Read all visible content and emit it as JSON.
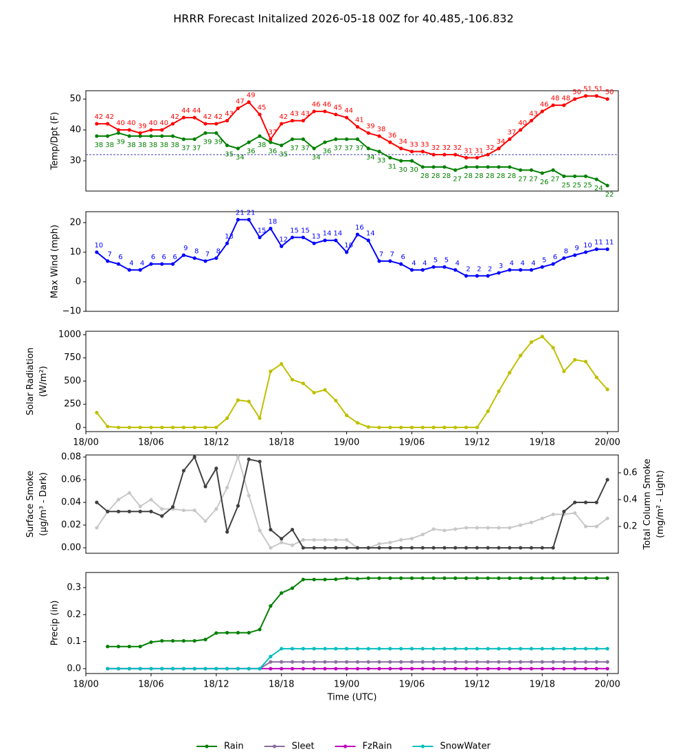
{
  "title": "HRRR Forecast Initalized 2026-05-18 00Z for 40.485,-106.832",
  "chart_data": [
    {
      "type": "line",
      "ylabel": [
        "Temp/Dpt (F)"
      ],
      "x": [
        1,
        2,
        3,
        4,
        5,
        6,
        7,
        8,
        9,
        10,
        11,
        12,
        13,
        14,
        15,
        16,
        17,
        18,
        19,
        20,
        21,
        22,
        23,
        24,
        25,
        26,
        27,
        28,
        29,
        30,
        31,
        32,
        33,
        34,
        35,
        36,
        37,
        38,
        39,
        40,
        41,
        42,
        43,
        44,
        45,
        46,
        47,
        48
      ],
      "xlim": [
        0,
        49
      ],
      "ylim": [
        20.2,
        52.7
      ],
      "yticks": [
        30,
        40,
        50
      ],
      "hline": {
        "value": 32,
        "color": "#00008b"
      },
      "series": [
        {
          "color": "#ff0000",
          "labels": "above",
          "values": [
            42,
            42,
            40,
            40,
            39,
            40,
            40,
            42,
            44,
            44,
            42,
            42,
            43,
            47,
            49,
            45,
            37,
            42,
            43,
            43,
            46,
            46,
            45,
            44,
            41,
            39,
            38,
            36,
            34,
            33,
            33,
            32,
            32,
            32,
            31,
            31,
            32,
            34,
            37,
            40,
            43,
            46,
            48,
            48,
            50,
            51,
            51,
            50
          ]
        },
        {
          "color": "#008000",
          "labels": "below",
          "values": [
            38,
            38,
            39,
            38,
            38,
            38,
            38,
            38,
            37,
            37,
            39,
            39,
            35,
            34,
            36,
            38,
            36,
            35,
            37,
            37,
            34,
            36,
            37,
            37,
            37,
            34,
            33,
            31,
            30,
            30,
            28,
            28,
            28,
            27,
            28,
            28,
            28,
            28,
            28,
            27,
            27,
            26,
            27,
            25,
            25,
            25,
            24,
            22
          ]
        }
      ]
    },
    {
      "type": "line",
      "ylabel": [
        "Max Wind (mph)"
      ],
      "x": [
        1,
        2,
        3,
        4,
        5,
        6,
        7,
        8,
        9,
        10,
        11,
        12,
        13,
        14,
        15,
        16,
        17,
        18,
        19,
        20,
        21,
        22,
        23,
        24,
        25,
        26,
        27,
        28,
        29,
        30,
        31,
        32,
        33,
        34,
        35,
        36,
        37,
        38,
        39,
        40,
        41,
        42,
        43,
        44,
        45,
        46,
        47,
        48
      ],
      "xlim": [
        0,
        49
      ],
      "ylim": [
        -10,
        23.7
      ],
      "yticks": [
        {
          "value": -10,
          "label": "−10"
        },
        0,
        10,
        20
      ],
      "series": [
        {
          "color": "#0000ff",
          "labels": "above",
          "values": [
            10,
            7,
            6,
            4,
            4,
            6,
            6,
            6,
            9,
            8,
            7,
            8,
            13,
            21,
            21,
            15,
            18,
            12,
            15,
            15,
            13,
            14,
            14,
            10,
            16,
            14,
            7,
            7,
            6,
            4,
            4,
            5,
            5,
            4,
            2,
            2,
            2,
            3,
            4,
            4,
            4,
            5,
            6,
            8,
            9,
            10,
            11,
            11
          ]
        }
      ]
    },
    {
      "type": "line",
      "ylabel": [
        "Solar Radiation",
        "(W/m²)"
      ],
      "x": [
        1,
        2,
        3,
        4,
        5,
        6,
        7,
        8,
        9,
        10,
        11,
        12,
        13,
        14,
        15,
        16,
        17,
        18,
        19,
        20,
        21,
        22,
        23,
        24,
        25,
        26,
        27,
        28,
        29,
        30,
        31,
        32,
        33,
        34,
        35,
        36,
        37,
        38,
        39,
        40,
        41,
        42,
        43,
        44,
        45,
        46,
        47,
        48
      ],
      "xlim": [
        0,
        49
      ],
      "ylim": [
        -45,
        1037
      ],
      "yticks": [
        0,
        250,
        500,
        750,
        1000
      ],
      "xticks": [
        {
          "value": 0,
          "label": "18/00"
        },
        {
          "value": 6,
          "label": "18/06"
        },
        {
          "value": 12,
          "label": "18/12"
        },
        {
          "value": 18,
          "label": "18/18"
        },
        {
          "value": 24,
          "label": "19/00"
        },
        {
          "value": 30,
          "label": "19/06"
        },
        {
          "value": 36,
          "label": "19/12"
        },
        {
          "value": 42,
          "label": "19/18"
        },
        {
          "value": 48,
          "label": "20/00"
        }
      ],
      "series": [
        {
          "color": "#bfbf00",
          "values": [
            160,
            10,
            0,
            0,
            0,
            0,
            0,
            0,
            0,
            0,
            0,
            0,
            100,
            295,
            280,
            100,
            605,
            685,
            515,
            475,
            375,
            405,
            290,
            130,
            50,
            5,
            0,
            0,
            0,
            0,
            0,
            0,
            0,
            0,
            0,
            0,
            175,
            390,
            590,
            775,
            920,
            980,
            860,
            605,
            730,
            710,
            540,
            410
          ]
        }
      ]
    },
    {
      "type": "line",
      "ylabel": [
        "Surface Smoke",
        "(μg/m³ - Dark)"
      ],
      "y2label": [
        "Total Column Smoke",
        "(mg/m² - Light)"
      ],
      "x": [
        1,
        2,
        3,
        4,
        5,
        6,
        7,
        8,
        9,
        10,
        11,
        12,
        13,
        14,
        15,
        16,
        17,
        18,
        19,
        20,
        21,
        22,
        23,
        24,
        25,
        26,
        27,
        28,
        29,
        30,
        31,
        32,
        33,
        34,
        35,
        36,
        37,
        38,
        39,
        40,
        41,
        42,
        43,
        44,
        45,
        46,
        47,
        48
      ],
      "xlim": [
        0,
        49
      ],
      "ylim": [
        -0.0048,
        0.0818
      ],
      "y2lim": [
        0,
        0.733
      ],
      "yticks": [
        {
          "value": 0,
          "label": "0.00"
        },
        {
          "value": 0.02,
          "label": "0.02"
        },
        {
          "value": 0.04,
          "label": "0.04"
        },
        {
          "value": 0.06,
          "label": "0.06"
        },
        {
          "value": 0.08,
          "label": "0.08"
        }
      ],
      "y2ticks": [
        0.2,
        0.4,
        0.6
      ],
      "series": [
        {
          "color": "#c8c8c8",
          "axis": "y2",
          "values": [
            0.19,
            0.31,
            0.4,
            0.45,
            0.35,
            0.4,
            0.33,
            0.33,
            0.32,
            0.32,
            0.24,
            0.33,
            0.49,
            0.72,
            0.43,
            0.17,
            0.04,
            0.08,
            0.06,
            0.1,
            0.1,
            0.1,
            0.1,
            0.1,
            0.04,
            0.04,
            0.07,
            0.08,
            0.1,
            0.11,
            0.14,
            0.18,
            0.17,
            0.18,
            0.19,
            0.19,
            0.19,
            0.19,
            0.19,
            0.21,
            0.23,
            0.26,
            0.29,
            0.29,
            0.3,
            0.2,
            0.2,
            0.26
          ]
        },
        {
          "color": "#404040",
          "values": [
            0.04,
            0.032,
            0.032,
            0.032,
            0.032,
            0.032,
            0.028,
            0.036,
            0.068,
            0.08,
            0.054,
            0.07,
            0.014,
            0.037,
            0.078,
            0.076,
            0.016,
            0.008,
            0.016,
            0,
            0,
            0,
            0,
            0,
            0,
            0,
            0,
            0,
            0,
            0,
            0,
            0,
            0,
            0,
            0,
            0,
            0,
            0,
            0,
            0,
            0,
            0,
            0,
            0.032,
            0.04,
            0.04,
            0.04,
            0.06
          ]
        }
      ]
    },
    {
      "type": "line",
      "ylabel": [
        "Precip (in)"
      ],
      "xlabel": "Time (UTC)",
      "legend": "lower center",
      "x": [
        1,
        2,
        3,
        4,
        5,
        6,
        7,
        8,
        9,
        10,
        11,
        12,
        13,
        14,
        15,
        16,
        17,
        18,
        19,
        20,
        21,
        22,
        23,
        24,
        25,
        26,
        27,
        28,
        29,
        30,
        31,
        32,
        33,
        34,
        35,
        36,
        37,
        38,
        39,
        40,
        41,
        42,
        43,
        44,
        45,
        46,
        47,
        48
      ],
      "xlim": [
        0,
        49
      ],
      "ylim": [
        -0.018,
        0.356
      ],
      "yticks": [
        {
          "value": 0,
          "label": "0.0"
        },
        0.1,
        0.2,
        0.3
      ],
      "xticks": [
        {
          "value": 0,
          "label": "18/00"
        },
        {
          "value": 6,
          "label": "18/06"
        },
        {
          "value": 12,
          "label": "18/12"
        },
        {
          "value": 18,
          "label": "18/18"
        },
        {
          "value": 24,
          "label": "19/00"
        },
        {
          "value": 30,
          "label": "19/06"
        },
        {
          "value": 36,
          "label": "19/12"
        },
        {
          "value": 42,
          "label": "19/18"
        },
        {
          "value": 48,
          "label": "20/00"
        }
      ],
      "series": [
        {
          "name": "Rain",
          "color": "#008000",
          "values": [
            null,
            0.082,
            0.082,
            0.082,
            0.082,
            0.098,
            0.103,
            0.103,
            0.103,
            0.103,
            0.108,
            0.132,
            0.133,
            0.133,
            0.133,
            0.145,
            0.232,
            0.28,
            0.298,
            0.33,
            0.33,
            0.33,
            0.331,
            0.335,
            0.333,
            0.335,
            0.335,
            0.335,
            0.335,
            0.335,
            0.335,
            0.335,
            0.335,
            0.335,
            0.335,
            0.335,
            0.335,
            0.335,
            0.335,
            0.335,
            0.335,
            0.335,
            0.335,
            0.335,
            0.335,
            0.335,
            0.335,
            0.335
          ]
        },
        {
          "name": "Sleet",
          "color": "#8a6e9e",
          "values": [
            null,
            0,
            0,
            0,
            0,
            0,
            0,
            0,
            0,
            0,
            0,
            0,
            0,
            0,
            0,
            0,
            0.025,
            0.025,
            0.025,
            0.025,
            0.025,
            0.025,
            0.025,
            0.025,
            0.025,
            0.025,
            0.025,
            0.025,
            0.025,
            0.025,
            0.025,
            0.025,
            0.025,
            0.025,
            0.025,
            0.025,
            0.025,
            0.025,
            0.025,
            0.025,
            0.025,
            0.025,
            0.025,
            0.025,
            0.025,
            0.025,
            0.025,
            0.025
          ]
        },
        {
          "name": "FzRain",
          "color": "#bf00bf",
          "values": [
            null,
            0,
            0,
            0,
            0,
            0,
            0,
            0,
            0,
            0,
            0,
            0,
            0,
            0,
            0,
            0,
            0,
            0,
            0,
            0,
            0,
            0,
            0,
            0,
            0,
            0,
            0,
            0,
            0,
            0,
            0,
            0,
            0,
            0,
            0,
            0,
            0,
            0,
            0,
            0,
            0,
            0,
            0,
            0,
            0,
            0,
            0,
            0
          ]
        },
        {
          "name": "SnowWater",
          "color": "#00bfbf",
          "values": [
            null,
            0,
            0,
            0,
            0,
            0,
            0,
            0,
            0,
            0,
            0,
            0,
            0,
            0,
            0,
            0,
            0.045,
            0.074,
            0.074,
            0.074,
            0.074,
            0.074,
            0.074,
            0.074,
            0.074,
            0.074,
            0.074,
            0.074,
            0.074,
            0.074,
            0.074,
            0.074,
            0.074,
            0.074,
            0.074,
            0.074,
            0.074,
            0.074,
            0.074,
            0.074,
            0.074,
            0.074,
            0.074,
            0.074,
            0.074,
            0.074,
            0.074,
            0.074
          ]
        }
      ]
    }
  ]
}
